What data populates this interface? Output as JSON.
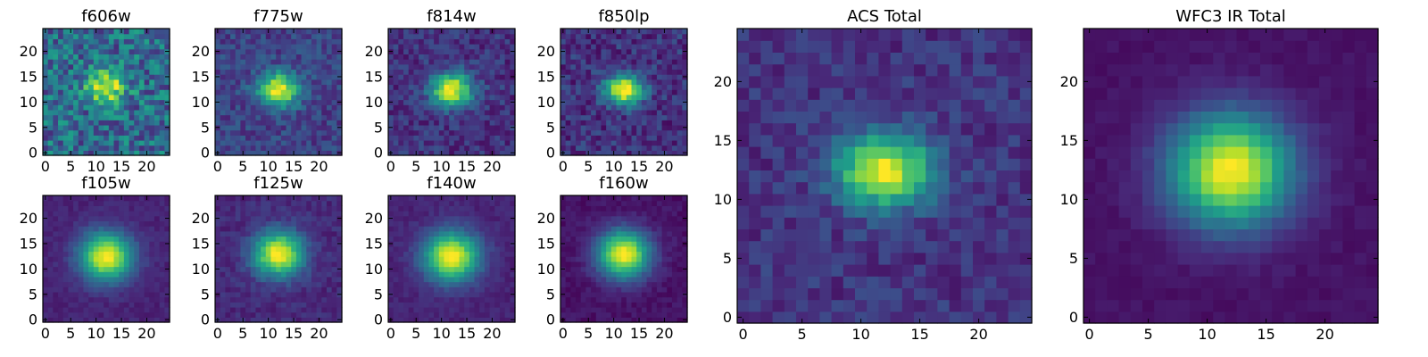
{
  "chart_data": [
    {
      "type": "heatmap",
      "title": "f606w",
      "cmap": "viridis",
      "ticks": [
        0,
        5,
        10,
        15,
        20
      ],
      "nx": 25,
      "ny": 25,
      "peak": [
        12,
        13
      ],
      "spread": [
        2.6,
        2.2
      ],
      "noise": 0.45,
      "floor": 0.35
    },
    {
      "type": "heatmap",
      "title": "f775w",
      "cmap": "viridis",
      "ticks": [
        0,
        5,
        10,
        15,
        20
      ],
      "nx": 25,
      "ny": 25,
      "peak": [
        12,
        12.5
      ],
      "spread": [
        2.8,
        2.3
      ],
      "noise": 0.22,
      "floor": 0.2
    },
    {
      "type": "heatmap",
      "title": "f814w",
      "cmap": "viridis",
      "ticks": [
        0,
        5,
        10,
        15,
        20
      ],
      "nx": 25,
      "ny": 25,
      "peak": [
        12,
        12.5
      ],
      "spread": [
        2.8,
        2.3
      ],
      "noise": 0.22,
      "floor": 0.15
    },
    {
      "type": "heatmap",
      "title": "f850lp",
      "cmap": "viridis",
      "ticks": [
        0,
        5,
        10,
        15,
        20
      ],
      "nx": 25,
      "ny": 25,
      "peak": [
        12,
        12.5
      ],
      "spread": [
        2.6,
        2.1
      ],
      "noise": 0.25,
      "floor": 0.15
    },
    {
      "type": "heatmap",
      "title": "f105w",
      "cmap": "viridis",
      "ticks": [
        0,
        5,
        10,
        15,
        20
      ],
      "nx": 25,
      "ny": 25,
      "peak": [
        12,
        12.5
      ],
      "spread": [
        3.6,
        3.3
      ],
      "noise": 0.08,
      "floor": 0.1
    },
    {
      "type": "heatmap",
      "title": "f125w",
      "cmap": "viridis",
      "ticks": [
        0,
        5,
        10,
        15,
        20
      ],
      "nx": 25,
      "ny": 25,
      "peak": [
        12,
        13
      ],
      "spread": [
        3.4,
        3.1
      ],
      "noise": 0.12,
      "floor": 0.12
    },
    {
      "type": "heatmap",
      "title": "f140w",
      "cmap": "viridis",
      "ticks": [
        0,
        5,
        10,
        15,
        20
      ],
      "nx": 25,
      "ny": 25,
      "peak": [
        12,
        12.5
      ],
      "spread": [
        3.8,
        3.4
      ],
      "noise": 0.08,
      "floor": 0.1
    },
    {
      "type": "heatmap",
      "title": "f160w",
      "cmap": "viridis",
      "ticks": [
        0,
        5,
        10,
        15,
        20
      ],
      "nx": 25,
      "ny": 25,
      "peak": [
        12,
        13
      ],
      "spread": [
        3.6,
        3.3
      ],
      "noise": 0.08,
      "floor": 0.05
    },
    {
      "type": "heatmap",
      "title": "ACS Total",
      "cmap": "viridis",
      "ticks": [
        0,
        5,
        10,
        15,
        20
      ],
      "nx": 25,
      "ny": 25,
      "peak": [
        12,
        12.5
      ],
      "spread": [
        2.8,
        2.2
      ],
      "noise": 0.18,
      "floor": 0.15
    },
    {
      "type": "heatmap",
      "title": "WFC3 IR Total",
      "cmap": "viridis",
      "ticks": [
        0,
        5,
        10,
        15,
        20
      ],
      "nx": 25,
      "ny": 25,
      "peak": [
        12,
        12.5
      ],
      "spread": [
        3.6,
        3.3
      ],
      "noise": 0.05,
      "floor": 0.05
    }
  ]
}
